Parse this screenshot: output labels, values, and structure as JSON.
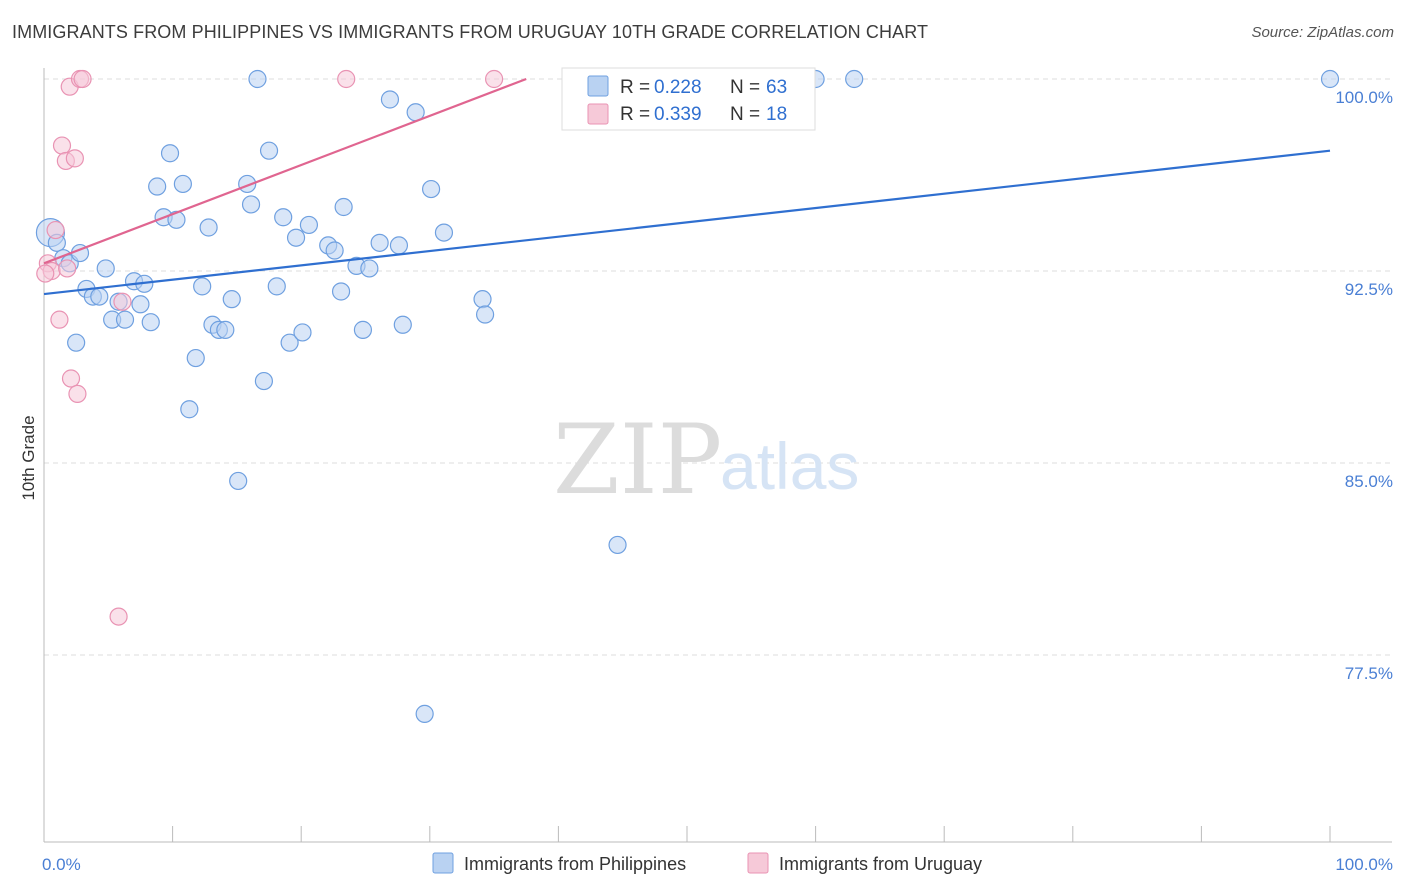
{
  "chart_data": {
    "type": "scatter",
    "title": "IMMIGRANTS FROM PHILIPPINES VS IMMIGRANTS FROM URUGUAY 10TH GRADE CORRELATION CHART",
    "source": "Source: ZipAtlas.com",
    "xlabel": "",
    "ylabel": "10th Grade",
    "xlim": [
      0,
      100
    ],
    "ylim": [
      70.0,
      101.0
    ],
    "x_tick_labels": [
      "0.0%",
      "100.0%"
    ],
    "y_ticks": [
      77.5,
      85.0,
      92.5,
      100.0
    ],
    "y_tick_labels": [
      "77.5%",
      "85.0%",
      "92.5%",
      "100.0%"
    ],
    "watermark": {
      "part1": "ZIP",
      "part2": "atlas"
    },
    "legend": {
      "r_label": "R = ",
      "n_label": "N = ",
      "entries": [
        {
          "r": "0.228",
          "n": "63"
        },
        {
          "r": "0.339",
          "n": "18"
        }
      ]
    },
    "series": [
      {
        "name": "Immigrants from Philippines",
        "color": "#6fa0e0",
        "fill": "#b9d2f2",
        "trend_color": "#2f6fd0",
        "trend": {
          "x0": 0,
          "y0": 91.6,
          "x1": 100,
          "y1": 97.2
        },
        "points": [
          [
            0.5,
            94.0
          ],
          [
            1.0,
            93.6
          ],
          [
            1.5,
            93.0
          ],
          [
            2.0,
            92.8
          ],
          [
            2.5,
            89.7
          ],
          [
            2.8,
            93.2
          ],
          [
            3.3,
            91.8
          ],
          [
            3.8,
            91.5
          ],
          [
            4.3,
            91.5
          ],
          [
            4.8,
            92.6
          ],
          [
            5.3,
            90.6
          ],
          [
            5.8,
            91.3
          ],
          [
            6.3,
            90.6
          ],
          [
            7.0,
            92.1
          ],
          [
            7.5,
            91.2
          ],
          [
            7.8,
            92.0
          ],
          [
            8.3,
            90.5
          ],
          [
            8.8,
            95.8
          ],
          [
            9.3,
            94.6
          ],
          [
            9.8,
            97.1
          ],
          [
            10.3,
            94.5
          ],
          [
            10.8,
            95.9
          ],
          [
            11.3,
            87.1
          ],
          [
            11.8,
            89.1
          ],
          [
            12.3,
            91.9
          ],
          [
            12.8,
            94.2
          ],
          [
            13.1,
            90.4
          ],
          [
            13.6,
            90.2
          ],
          [
            14.1,
            90.2
          ],
          [
            14.6,
            91.4
          ],
          [
            15.1,
            84.3
          ],
          [
            15.8,
            95.9
          ],
          [
            16.1,
            95.1
          ],
          [
            16.6,
            100.0
          ],
          [
            17.1,
            88.2
          ],
          [
            17.5,
            97.2
          ],
          [
            18.1,
            91.9
          ],
          [
            18.6,
            94.6
          ],
          [
            19.1,
            89.7
          ],
          [
            19.6,
            93.8
          ],
          [
            20.1,
            90.1
          ],
          [
            20.6,
            94.3
          ],
          [
            22.1,
            93.5
          ],
          [
            22.6,
            93.3
          ],
          [
            23.1,
            91.7
          ],
          [
            23.3,
            95.0
          ],
          [
            24.3,
            92.7
          ],
          [
            24.8,
            90.2
          ],
          [
            25.3,
            92.6
          ],
          [
            26.1,
            93.6
          ],
          [
            26.9,
            99.2
          ],
          [
            27.6,
            93.5
          ],
          [
            27.9,
            90.4
          ],
          [
            28.9,
            98.7
          ],
          [
            29.6,
            75.2
          ],
          [
            30.1,
            95.7
          ],
          [
            31.1,
            94.0
          ],
          [
            34.1,
            91.4
          ],
          [
            34.3,
            90.8
          ],
          [
            44.6,
            81.8
          ],
          [
            60.0,
            100.0
          ],
          [
            63.0,
            100.0
          ],
          [
            100.0,
            100.0
          ]
        ]
      },
      {
        "name": "Immigrants from Uruguay",
        "color": "#e993b3",
        "fill": "#f6c9d8",
        "trend_color": "#e06590",
        "trend": {
          "x0": 0,
          "y0": 92.8,
          "x1": 37.5,
          "y1": 100.0
        },
        "points": [
          [
            0.3,
            92.8
          ],
          [
            0.6,
            92.5
          ],
          [
            0.9,
            94.1
          ],
          [
            1.2,
            90.6
          ],
          [
            1.4,
            97.4
          ],
          [
            1.7,
            96.8
          ],
          [
            1.8,
            92.6
          ],
          [
            2.0,
            99.7
          ],
          [
            2.1,
            88.3
          ],
          [
            2.4,
            96.9
          ],
          [
            2.6,
            87.7
          ],
          [
            2.8,
            100.0
          ],
          [
            3.0,
            100.0
          ],
          [
            5.8,
            79.0
          ],
          [
            6.1,
            91.3
          ],
          [
            23.5,
            100.0
          ],
          [
            35.0,
            100.0
          ],
          [
            0.1,
            92.4
          ]
        ]
      }
    ]
  }
}
